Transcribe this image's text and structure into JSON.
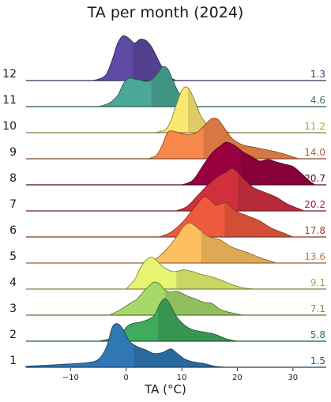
{
  "chart_data": {
    "type": "ridgeline",
    "title": "TA per month (2024)",
    "xlabel": "TA (°C)",
    "ylabel": "",
    "xlim": [
      -18,
      36
    ],
    "x_ticks": [
      -10,
      0,
      10,
      20,
      30
    ],
    "grid": false,
    "legend": "none",
    "series": [
      {
        "name": "1",
        "median": "1.5",
        "color": "#2f78b4",
        "median_num": 1.5,
        "density": [
          [
            -18,
            0.02
          ],
          [
            -15,
            0.04
          ],
          [
            -12,
            0.06
          ],
          [
            -9,
            0.08
          ],
          [
            -7,
            0.1
          ],
          [
            -5,
            0.17
          ],
          [
            -3.5,
            0.45
          ],
          [
            -2.5,
            0.87
          ],
          [
            -1.5,
            0.95
          ],
          [
            -0.5,
            0.82
          ],
          [
            0.5,
            0.58
          ],
          [
            2,
            0.45
          ],
          [
            3.5,
            0.38
          ],
          [
            5,
            0.3
          ],
          [
            6.5,
            0.32
          ],
          [
            8,
            0.4
          ],
          [
            9,
            0.32
          ],
          [
            10.5,
            0.18
          ],
          [
            12,
            0.12
          ],
          [
            14,
            0.08
          ],
          [
            16,
            0.02
          ],
          [
            18,
            0.0
          ]
        ]
      },
      {
        "name": "2",
        "median": "5.8",
        "color": "#41ab5d",
        "median_num": 5.8,
        "density": [
          [
            -5,
            0.0
          ],
          [
            -3,
            0.05
          ],
          [
            -1,
            0.15
          ],
          [
            0,
            0.3
          ],
          [
            1,
            0.38
          ],
          [
            3,
            0.43
          ],
          [
            5,
            0.55
          ],
          [
            6,
            0.8
          ],
          [
            7,
            0.93
          ],
          [
            8,
            0.78
          ],
          [
            9,
            0.55
          ],
          [
            10.5,
            0.35
          ],
          [
            12,
            0.25
          ],
          [
            14,
            0.2
          ],
          [
            16,
            0.15
          ],
          [
            18,
            0.05
          ],
          [
            20,
            0.0
          ]
        ]
      },
      {
        "name": "3",
        "median": "7.1",
        "color": "#a6d96a",
        "median_num": 7.1,
        "density": [
          [
            -3,
            0.0
          ],
          [
            -1,
            0.12
          ],
          [
            1,
            0.28
          ],
          [
            2,
            0.35
          ],
          [
            3,
            0.5
          ],
          [
            4,
            0.62
          ],
          [
            5,
            0.72
          ],
          [
            6,
            0.68
          ],
          [
            7,
            0.55
          ],
          [
            8,
            0.5
          ],
          [
            9,
            0.52
          ],
          [
            10,
            0.48
          ],
          [
            11,
            0.42
          ],
          [
            12.5,
            0.35
          ],
          [
            14,
            0.28
          ],
          [
            15.5,
            0.25
          ],
          [
            17,
            0.12
          ],
          [
            19,
            0.05
          ],
          [
            21,
            0.0
          ]
        ]
      },
      {
        "name": "4",
        "median": "9.1",
        "color": "#e6f570",
        "median_num": 9.1,
        "density": [
          [
            0,
            0.0
          ],
          [
            1.5,
            0.2
          ],
          [
            2.5,
            0.45
          ],
          [
            3.5,
            0.62
          ],
          [
            4.5,
            0.7
          ],
          [
            5.5,
            0.62
          ],
          [
            6.5,
            0.5
          ],
          [
            7.5,
            0.42
          ],
          [
            8.5,
            0.38
          ],
          [
            9.5,
            0.4
          ],
          [
            10.5,
            0.42
          ],
          [
            12,
            0.38
          ],
          [
            13.5,
            0.32
          ],
          [
            15,
            0.28
          ],
          [
            17,
            0.2
          ],
          [
            19,
            0.1
          ],
          [
            21,
            0.03
          ],
          [
            23,
            0.0
          ]
        ]
      },
      {
        "name": "5",
        "median": "13.6",
        "color": "#fdbf5f",
        "median_num": 13.6,
        "density": [
          [
            4,
            0.0
          ],
          [
            6,
            0.15
          ],
          [
            8,
            0.4
          ],
          [
            9.5,
            0.65
          ],
          [
            10.5,
            0.82
          ],
          [
            11.5,
            0.87
          ],
          [
            12.5,
            0.8
          ],
          [
            13.5,
            0.7
          ],
          [
            14.5,
            0.6
          ],
          [
            15.5,
            0.55
          ],
          [
            17,
            0.5
          ],
          [
            18.5,
            0.38
          ],
          [
            20,
            0.3
          ],
          [
            22,
            0.22
          ],
          [
            24,
            0.12
          ],
          [
            26,
            0.04
          ],
          [
            27,
            0.0
          ]
        ]
      },
      {
        "name": "6",
        "median": "17.8",
        "color": "#ef5a3c",
        "median_num": 17.8,
        "density": [
          [
            6,
            0.0
          ],
          [
            8,
            0.1
          ],
          [
            10,
            0.3
          ],
          [
            12,
            0.6
          ],
          [
            13,
            0.75
          ],
          [
            14,
            0.88
          ],
          [
            15,
            0.82
          ],
          [
            16,
            0.7
          ],
          [
            17,
            0.72
          ],
          [
            18,
            0.75
          ],
          [
            19,
            0.65
          ],
          [
            20,
            0.55
          ],
          [
            22,
            0.45
          ],
          [
            24,
            0.35
          ],
          [
            26,
            0.2
          ],
          [
            28,
            0.1
          ],
          [
            30,
            0.0
          ]
        ]
      },
      {
        "name": "7",
        "median": "20.2",
        "color": "#d0303e",
        "median_num": 20.2,
        "density": [
          [
            9,
            0.0
          ],
          [
            11,
            0.1
          ],
          [
            13,
            0.35
          ],
          [
            15,
            0.6
          ],
          [
            16.5,
            0.75
          ],
          [
            18,
            0.85
          ],
          [
            19,
            0.93
          ],
          [
            20,
            0.85
          ],
          [
            21,
            0.72
          ],
          [
            22,
            0.6
          ],
          [
            23,
            0.5
          ],
          [
            25,
            0.4
          ],
          [
            27,
            0.3
          ],
          [
            29,
            0.15
          ],
          [
            31,
            0.05
          ],
          [
            32,
            0.0
          ]
        ]
      },
      {
        "name": "8",
        "median": "20.7",
        "color": "#990040",
        "median_num": 20.7,
        "density": [
          [
            10,
            0.0
          ],
          [
            12,
            0.1
          ],
          [
            14,
            0.45
          ],
          [
            15.5,
            0.7
          ],
          [
            17,
            0.85
          ],
          [
            18,
            0.93
          ],
          [
            19.5,
            0.86
          ],
          [
            21,
            0.72
          ],
          [
            22.5,
            0.62
          ],
          [
            24,
            0.52
          ],
          [
            25.5,
            0.55
          ],
          [
            27,
            0.5
          ],
          [
            28.5,
            0.45
          ],
          [
            30,
            0.4
          ],
          [
            31.5,
            0.25
          ],
          [
            33,
            0.08
          ],
          [
            34,
            0.0
          ]
        ]
      },
      {
        "name": "9",
        "median": "14.0",
        "color": "#f7874b",
        "median_num": 14.0,
        "density": [
          [
            4,
            0.0
          ],
          [
            5.5,
            0.08
          ],
          [
            6.5,
            0.3
          ],
          [
            7.5,
            0.58
          ],
          [
            8.5,
            0.6
          ],
          [
            10,
            0.55
          ],
          [
            11.5,
            0.53
          ],
          [
            13,
            0.6
          ],
          [
            14.5,
            0.78
          ],
          [
            15.5,
            0.88
          ],
          [
            16.5,
            0.86
          ],
          [
            17.5,
            0.7
          ],
          [
            19,
            0.45
          ],
          [
            21,
            0.3
          ],
          [
            23,
            0.25
          ],
          [
            25,
            0.2
          ],
          [
            27,
            0.15
          ],
          [
            29,
            0.08
          ],
          [
            31,
            0.0
          ]
        ]
      },
      {
        "name": "10",
        "median": "11.2",
        "color": "#fbe872",
        "median_num": 11.2,
        "density": [
          [
            5,
            0.0
          ],
          [
            7,
            0.06
          ],
          [
            8,
            0.25
          ],
          [
            9,
            0.6
          ],
          [
            10,
            0.92
          ],
          [
            10.8,
            1.0
          ],
          [
            11.5,
            0.92
          ],
          [
            12.5,
            0.65
          ],
          [
            13.5,
            0.35
          ],
          [
            15,
            0.15
          ],
          [
            17,
            0.05
          ],
          [
            19,
            0.0
          ]
        ]
      },
      {
        "name": "11",
        "median": "4.6",
        "color": "#4aa896",
        "median_num": 4.6,
        "density": [
          [
            -5,
            0.0
          ],
          [
            -3,
            0.08
          ],
          [
            -1.5,
            0.25
          ],
          [
            -0.5,
            0.5
          ],
          [
            0.5,
            0.62
          ],
          [
            1.5,
            0.6
          ],
          [
            2.5,
            0.58
          ],
          [
            3.5,
            0.55
          ],
          [
            4.5,
            0.58
          ],
          [
            5.5,
            0.7
          ],
          [
            6.5,
            0.87
          ],
          [
            7.5,
            0.82
          ],
          [
            8.5,
            0.55
          ],
          [
            9.5,
            0.3
          ],
          [
            11,
            0.12
          ],
          [
            13,
            0.0
          ]
        ]
      },
      {
        "name": "12",
        "median": "1.3",
        "color": "#5e4aa3",
        "median_num": 1.3,
        "density": [
          [
            -6,
            0.0
          ],
          [
            -4.5,
            0.05
          ],
          [
            -3.5,
            0.15
          ],
          [
            -2.5,
            0.45
          ],
          [
            -1.5,
            0.82
          ],
          [
            -0.5,
            0.98
          ],
          [
            0.5,
            0.92
          ],
          [
            1.5,
            0.82
          ],
          [
            2.5,
            0.9
          ],
          [
            3.5,
            0.88
          ],
          [
            4.5,
            0.75
          ],
          [
            5.5,
            0.52
          ],
          [
            6.5,
            0.28
          ],
          [
            7.5,
            0.1
          ],
          [
            9,
            0.0
          ]
        ]
      }
    ]
  }
}
